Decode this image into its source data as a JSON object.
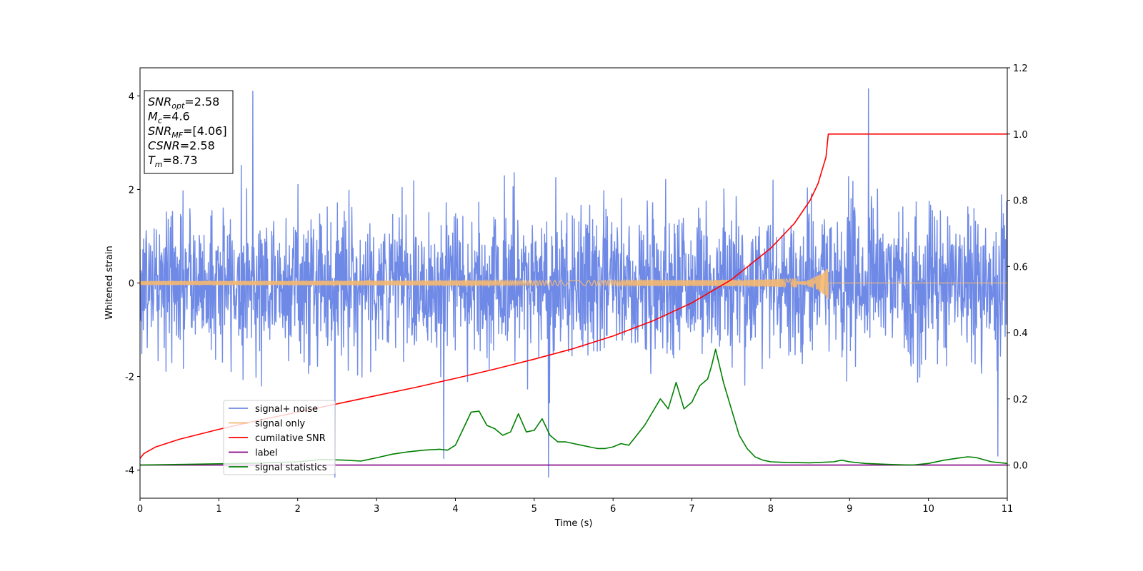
{
  "chart_data": {
    "type": "line",
    "xlabel": "Time (s)",
    "ylabel_left": "Whitened strain",
    "ylabel_right": "",
    "xlim": [
      0,
      11
    ],
    "ylim_left": [
      -4.6,
      4.6
    ],
    "ylim_right": [
      -0.1,
      1.2
    ],
    "x_ticks": [
      0,
      1,
      2,
      3,
      4,
      5,
      6,
      7,
      8,
      9,
      10,
      11
    ],
    "y_ticks_left": [
      -4,
      -2,
      0,
      2,
      4
    ],
    "y_ticks_right": [
      0.0,
      0.2,
      0.4,
      0.6,
      0.8,
      1.0,
      1.2
    ],
    "grid": false,
    "legend_position": "lower-left",
    "annotation": {
      "lines": [
        {
          "main": "SNR",
          "sub": "opt",
          "rest": "=2.58"
        },
        {
          "main": "M",
          "sub": "c",
          "rest": "=4.6"
        },
        {
          "main": "SNR",
          "sub": "MF",
          "rest": "=[4.06]"
        },
        {
          "main": "CSNR",
          "sub": "",
          "rest": "=2.58"
        },
        {
          "main": "T",
          "sub": "m",
          "rest": "=8.73"
        }
      ]
    },
    "series": [
      {
        "name": "signal+ noise",
        "axis": "left",
        "color": "#6f8ae6",
        "kind": "noise",
        "duration": 11,
        "sigma": 0.78,
        "notable_peaks": [
          [
            1.43,
            4.1
          ],
          [
            9.24,
            4.15
          ],
          [
            5.18,
            -4.15
          ],
          [
            2.47,
            -4.15
          ],
          [
            3.85,
            -3.75
          ],
          [
            10.88,
            -3.7
          ]
        ]
      },
      {
        "name": "signal only",
        "axis": "left",
        "color": "#f5b870",
        "kind": "chirp",
        "merger_time": 8.73,
        "peak_amplitude": 0.28
      },
      {
        "name": "cumilative SNR",
        "axis": "right",
        "color": "#ff0000",
        "x": [
          0,
          0.05,
          0.2,
          0.5,
          1,
          1.5,
          2,
          2.5,
          3,
          3.5,
          4,
          4.5,
          5,
          5.5,
          6,
          6.5,
          7,
          7.5,
          8,
          8.3,
          8.5,
          8.6,
          8.7,
          8.73,
          9,
          10,
          11
        ],
        "values": [
          0.02,
          0.035,
          0.055,
          0.078,
          0.108,
          0.135,
          0.16,
          0.185,
          0.21,
          0.235,
          0.262,
          0.29,
          0.32,
          0.352,
          0.39,
          0.435,
          0.49,
          0.56,
          0.655,
          0.73,
          0.8,
          0.85,
          0.93,
          1.0,
          1.0,
          1.0,
          1.0
        ]
      },
      {
        "name": "label",
        "axis": "right",
        "color": "#800080",
        "x": [
          0,
          11
        ],
        "values": [
          0.0,
          0.0
        ]
      },
      {
        "name": "signal statistics",
        "axis": "right",
        "color": "#008000",
        "x": [
          0,
          0.5,
          1,
          1.5,
          2,
          2.3,
          2.6,
          2.8,
          3,
          3.2,
          3.4,
          3.6,
          3.8,
          3.9,
          4.0,
          4.1,
          4.2,
          4.3,
          4.4,
          4.5,
          4.6,
          4.7,
          4.8,
          4.9,
          5.0,
          5.1,
          5.2,
          5.3,
          5.4,
          5.5,
          5.6,
          5.7,
          5.8,
          5.9,
          6.0,
          6.1,
          6.2,
          6.3,
          6.4,
          6.5,
          6.6,
          6.7,
          6.8,
          6.9,
          7.0,
          7.1,
          7.2,
          7.25,
          7.3,
          7.35,
          7.4,
          7.5,
          7.6,
          7.7,
          7.8,
          7.9,
          8.0,
          8.2,
          8.5,
          8.8,
          8.9,
          9.0,
          9.2,
          9.5,
          9.8,
          10.0,
          10.2,
          10.4,
          10.5,
          10.6,
          10.8,
          11.0
        ],
        "values": [
          0.0,
          0.002,
          0.004,
          0.006,
          0.01,
          0.017,
          0.015,
          0.012,
          0.022,
          0.033,
          0.04,
          0.045,
          0.048,
          0.045,
          0.06,
          0.11,
          0.16,
          0.163,
          0.12,
          0.11,
          0.09,
          0.1,
          0.155,
          0.1,
          0.105,
          0.14,
          0.09,
          0.07,
          0.07,
          0.065,
          0.06,
          0.055,
          0.05,
          0.05,
          0.055,
          0.065,
          0.06,
          0.09,
          0.12,
          0.16,
          0.2,
          0.17,
          0.25,
          0.17,
          0.19,
          0.24,
          0.26,
          0.3,
          0.35,
          0.3,
          0.25,
          0.17,
          0.09,
          0.05,
          0.025,
          0.015,
          0.01,
          0.008,
          0.007,
          0.01,
          0.015,
          0.01,
          0.005,
          0.002,
          0.0,
          0.005,
          0.015,
          0.022,
          0.025,
          0.023,
          0.01,
          0.005
        ]
      }
    ]
  }
}
